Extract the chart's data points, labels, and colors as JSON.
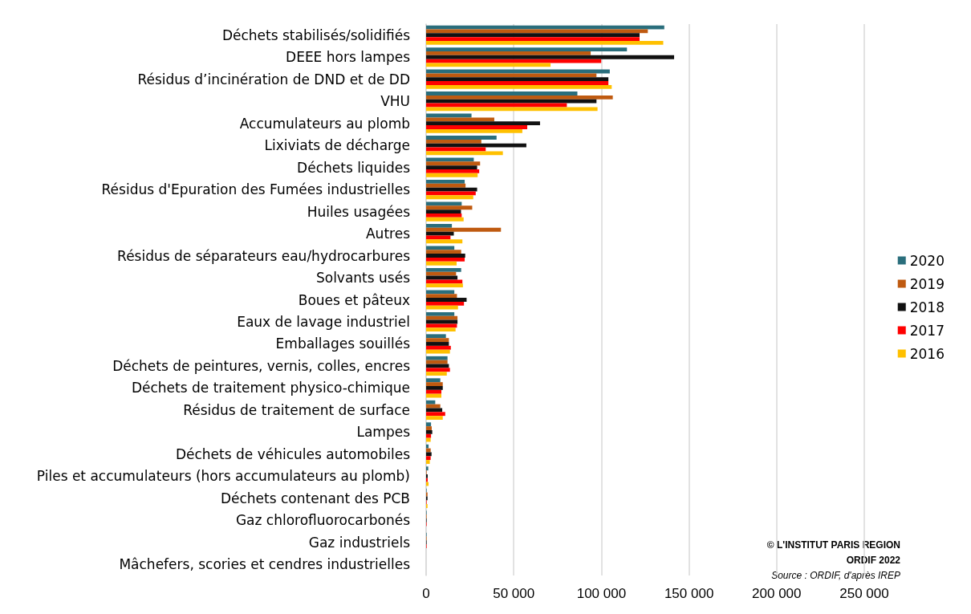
{
  "chart_data": {
    "type": "bar",
    "orientation": "horizontal",
    "categories": [
      "Déchets stabilisés/solidifiés",
      "DEEE hors lampes",
      "Résidus d’incinération de DND et de DD",
      "VHU",
      "Accumulateurs au plomb",
      "Lixiviats de décharge",
      "Déchets liquides",
      "Résidus d'Epuration des Fumées industrielles",
      "Huiles usagées",
      "Autres",
      "Résidus de séparateurs eau/hydrocarbures",
      "Solvants usés",
      "Boues et pâteux",
      "Eaux de lavage industriel",
      "Emballages souillés",
      "Déchets de peintures, vernis, colles, encres",
      "Déchets de traitement physico-chimique",
      "Résidus de traitement de surface",
      "Lampes",
      "Déchets de véhicules automobiles",
      "Piles et accumulateurs (hors accumulateurs au plomb)",
      "Déchets contenant des PCB",
      "Gaz chlorofluorocarbonés",
      "Gaz industriels",
      "Mâchefers, scories et cendres industrielles"
    ],
    "series": [
      {
        "name": "2020",
        "color": "#2a6e7c",
        "values": [
          135900,
          114600,
          104800,
          86300,
          25900,
          40200,
          27200,
          22000,
          20300,
          14700,
          16100,
          20000,
          16100,
          16100,
          11300,
          12200,
          8100,
          5200,
          2800,
          1400,
          1200,
          300,
          300,
          300,
          0
        ]
      },
      {
        "name": "2019",
        "color": "#bf5a10",
        "values": [
          126500,
          93900,
          97200,
          106500,
          38900,
          31500,
          30800,
          22500,
          26300,
          42700,
          20000,
          17100,
          17600,
          17900,
          13000,
          12200,
          9500,
          8100,
          3200,
          2600,
          300,
          800,
          300,
          300,
          0
        ]
      },
      {
        "name": "2018",
        "color": "#111111",
        "values": [
          121800,
          141500,
          104000,
          97200,
          65000,
          57200,
          29100,
          29100,
          19900,
          15800,
          22300,
          17900,
          23100,
          17900,
          13000,
          13000,
          9500,
          9200,
          3500,
          3100,
          900,
          800,
          300,
          300,
          0
        ]
      },
      {
        "name": "2017",
        "color": "#ff0000",
        "values": [
          121800,
          99900,
          104000,
          80300,
          57700,
          34000,
          30300,
          28300,
          20300,
          13900,
          22000,
          20700,
          21600,
          17600,
          14100,
          13600,
          8700,
          10900,
          2800,
          2600,
          900,
          300,
          300,
          300,
          0
        ]
      },
      {
        "name": "2016",
        "color": "#ffc000",
        "values": [
          135300,
          71000,
          105900,
          97800,
          54900,
          43800,
          29400,
          26900,
          21400,
          20700,
          17400,
          21000,
          18200,
          16800,
          13600,
          11800,
          8700,
          9500,
          2600,
          2100,
          1400,
          800,
          null,
          null,
          0
        ]
      }
    ],
    "xlim": [
      0,
      250000
    ],
    "xticks": [
      0,
      {
        "value": 50000,
        "label": "50 000"
      },
      {
        "value": 100000,
        "label": "100 000"
      },
      {
        "value": 150000,
        "label": "150 000"
      },
      {
        "value": 200000,
        "label": "200 000"
      },
      {
        "value": 250000,
        "label": "250 000"
      }
    ],
    "grid": "x",
    "legend": "right",
    "annotations": [
      "© L'INSTITUT PARIS REGION",
      "ORDIF 2022",
      "Source : ORDIF, d'après IREP"
    ]
  }
}
